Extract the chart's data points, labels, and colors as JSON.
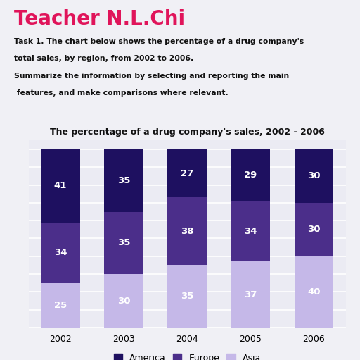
{
  "title": "The percentage of a drug company's sales, 2002 - 2006",
  "header_title": "Teacher N.L.Chi",
  "header_line1": "Task 1. The chart below shows the percentage of a drug company's",
  "header_line2": "total sales, by region, from 2002 to 2006.",
  "header_line3": "Summarize the information by selecting and reporting the main",
  "header_line4": " features, and make comparisons where relevant.",
  "years": [
    "2002",
    "2003",
    "2004",
    "2005",
    "2006"
  ],
  "america": [
    41,
    35,
    27,
    29,
    30
  ],
  "europe": [
    34,
    35,
    38,
    34,
    30
  ],
  "asia": [
    25,
    30,
    35,
    37,
    40
  ],
  "color_america": "#1e1060",
  "color_europe": "#4b2e8a",
  "color_asia": "#c5b8e8",
  "background_color": "#f0f0f5",
  "chart_bg": "#ebebf3",
  "grid_color": "#ffffff",
  "legend_labels": [
    "America",
    "Europe",
    "Asia"
  ],
  "bar_width": 0.62,
  "ylim": [
    0,
    105
  ],
  "ytick_step": 10
}
